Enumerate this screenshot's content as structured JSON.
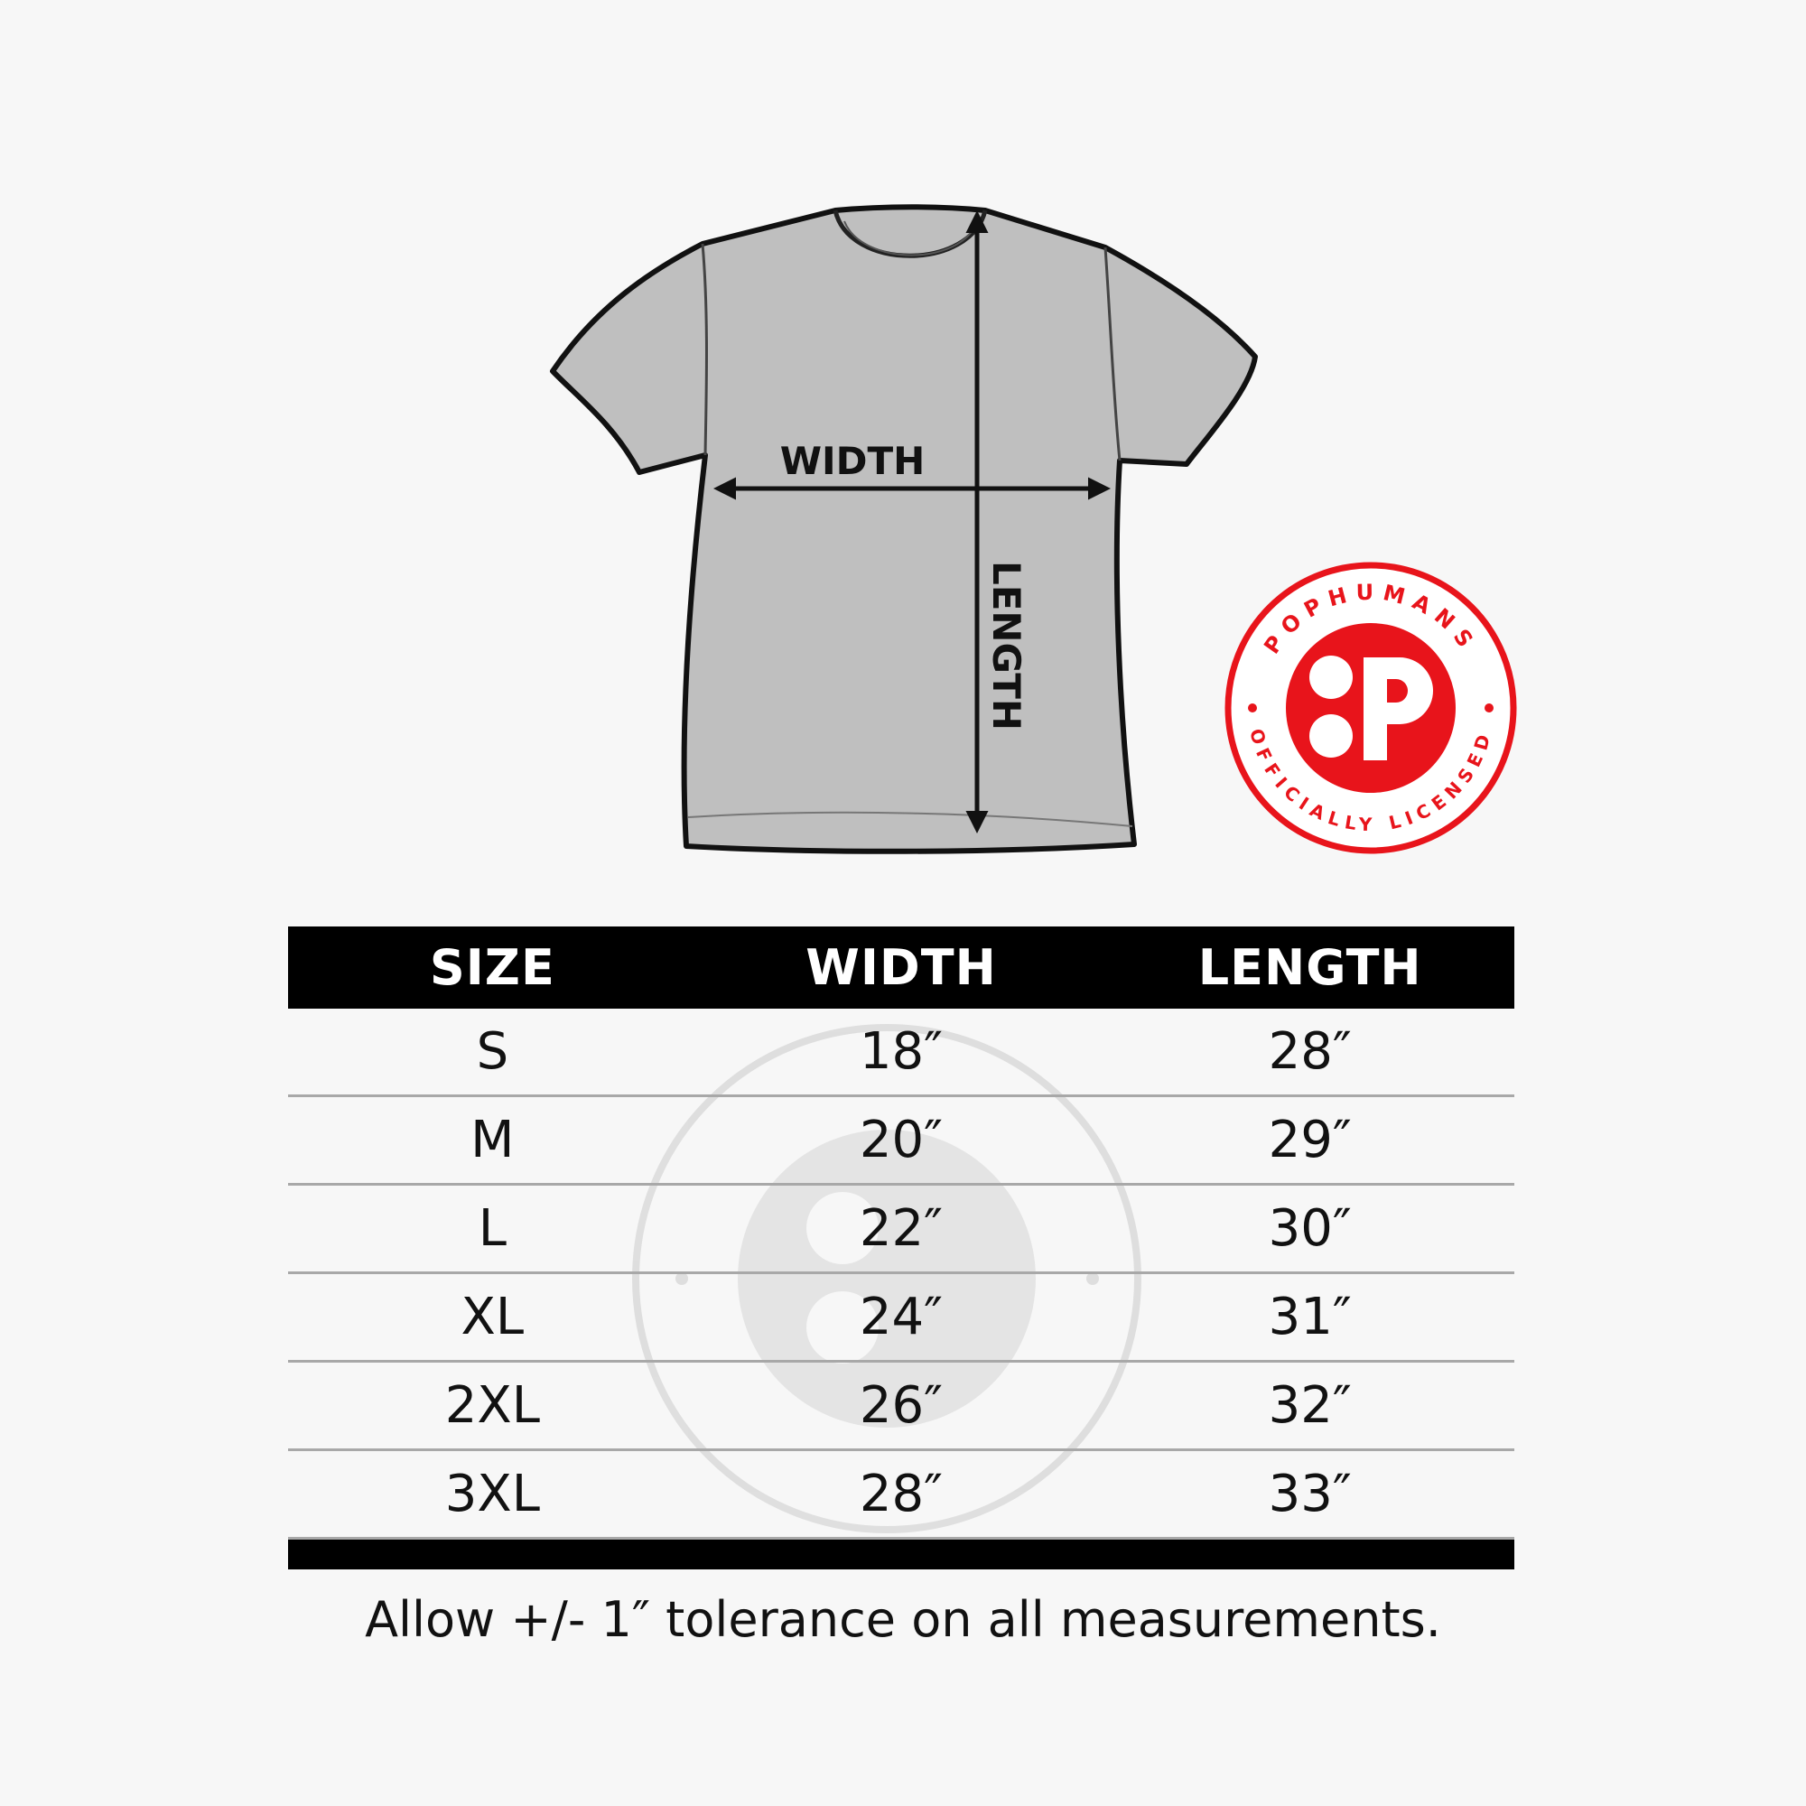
{
  "diagram": {
    "width_label": "WIDTH",
    "length_label": "LENGTH"
  },
  "logo": {
    "top_text": "POPHUMANS",
    "bottom_text": "OFFICIALLY LICENSED",
    "mark": "P",
    "color": "#e8141b"
  },
  "table": {
    "headers": [
      "SIZE",
      "WIDTH",
      "LENGTH"
    ],
    "rows": [
      [
        "S",
        "18″",
        "28″"
      ],
      [
        "M",
        "20″",
        "29″"
      ],
      [
        "L",
        "22″",
        "30″"
      ],
      [
        "XL",
        "24″",
        "31″"
      ],
      [
        "2XL",
        "26″",
        "32″"
      ],
      [
        "3XL",
        "28″",
        "33″"
      ]
    ]
  },
  "footer": "Allow +/- 1″ tolerance on all measurements."
}
